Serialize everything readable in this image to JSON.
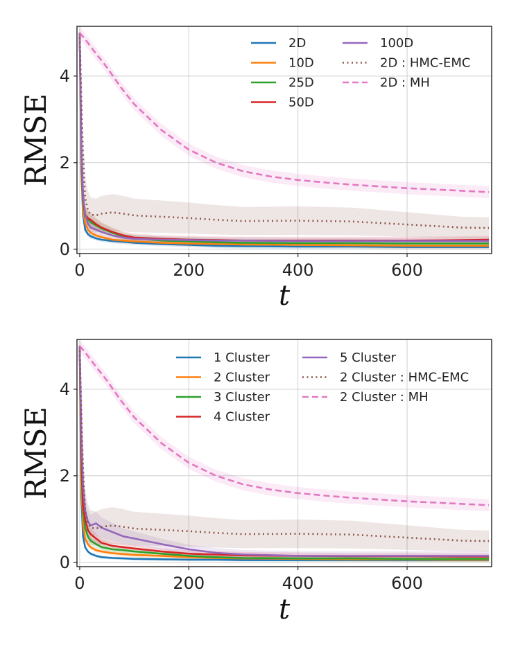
{
  "colors": {
    "c2D": "#1f77b4",
    "c10D": "#ff7f0e",
    "c25D": "#2ca02c",
    "c50D": "#d62728",
    "c100D": "#9467bd",
    "hmc": "#8c564b",
    "mh": "#e377c2",
    "grid": "#cfcfcf",
    "axes": "#222222"
  },
  "chart_data": [
    {
      "type": "line",
      "title": "",
      "xlabel": "t",
      "ylabel": "RMSE",
      "xlim": [
        -5,
        755
      ],
      "ylim": [
        -0.1,
        5.15
      ],
      "xticks": [
        0,
        200,
        400,
        600
      ],
      "xtick_labels": [
        "0",
        "200",
        "400",
        "600"
      ],
      "yticks": [
        0,
        2,
        4
      ],
      "ytick_labels": [
        "0",
        "2",
        "4"
      ],
      "grid": true,
      "legend": "top-right",
      "series": [
        {
          "name": "2D",
          "style": "solid",
          "color": "#1f77b4",
          "band": 0.15,
          "x": [
            0,
            3,
            6,
            10,
            15,
            20,
            30,
            40,
            60,
            80,
            100,
            150,
            200,
            250,
            300,
            400,
            500,
            600,
            700,
            750
          ],
          "y": [
            5.0,
            1.8,
            0.8,
            0.45,
            0.35,
            0.3,
            0.25,
            0.22,
            0.19,
            0.17,
            0.15,
            0.12,
            0.1,
            0.08,
            0.07,
            0.06,
            0.06,
            0.05,
            0.05,
            0.05
          ]
        },
        {
          "name": "10D",
          "style": "solid",
          "color": "#ff7f0e",
          "band": 0.18,
          "x": [
            0,
            3,
            6,
            10,
            15,
            20,
            30,
            40,
            60,
            80,
            100,
            150,
            200,
            250,
            300,
            400,
            500,
            600,
            700,
            750
          ],
          "y": [
            5.0,
            2.0,
            0.9,
            0.6,
            0.45,
            0.38,
            0.32,
            0.28,
            0.22,
            0.2,
            0.18,
            0.15,
            0.13,
            0.12,
            0.11,
            0.1,
            0.09,
            0.08,
            0.08,
            0.08
          ]
        },
        {
          "name": "25D",
          "style": "solid",
          "color": "#2ca02c",
          "band": 0.25,
          "x": [
            0,
            3,
            6,
            10,
            15,
            20,
            30,
            40,
            60,
            80,
            100,
            150,
            200,
            250,
            300,
            400,
            500,
            600,
            700,
            750
          ],
          "y": [
            5.0,
            2.2,
            1.1,
            0.75,
            0.7,
            0.62,
            0.55,
            0.48,
            0.38,
            0.3,
            0.25,
            0.2,
            0.18,
            0.16,
            0.15,
            0.14,
            0.14,
            0.13,
            0.13,
            0.13
          ]
        },
        {
          "name": "50D",
          "style": "solid",
          "color": "#d62728",
          "band": 0.25,
          "x": [
            0,
            3,
            6,
            10,
            15,
            20,
            30,
            40,
            60,
            80,
            100,
            150,
            200,
            250,
            300,
            400,
            500,
            600,
            700,
            750
          ],
          "y": [
            5.0,
            2.3,
            1.2,
            0.8,
            0.72,
            0.68,
            0.58,
            0.5,
            0.4,
            0.32,
            0.27,
            0.24,
            0.22,
            0.21,
            0.2,
            0.2,
            0.2,
            0.2,
            0.21,
            0.22
          ]
        },
        {
          "name": "100D",
          "style": "solid",
          "color": "#9467bd",
          "band": 0.22,
          "x": [
            0,
            3,
            6,
            10,
            15,
            20,
            30,
            40,
            60,
            80,
            100,
            150,
            200,
            250,
            300,
            400,
            500,
            600,
            700,
            750
          ],
          "y": [
            5.0,
            2.4,
            1.3,
            0.8,
            0.6,
            0.5,
            0.45,
            0.4,
            0.32,
            0.27,
            0.24,
            0.22,
            0.21,
            0.2,
            0.2,
            0.19,
            0.19,
            0.19,
            0.19,
            0.19
          ]
        },
        {
          "name": "2D : HMC-EMC",
          "style": "dotted",
          "color": "#8c564b",
          "band": 0.5,
          "x": [
            0,
            3,
            6,
            10,
            15,
            20,
            30,
            40,
            60,
            80,
            100,
            150,
            200,
            250,
            300,
            400,
            500,
            600,
            700,
            750
          ],
          "y": [
            5.0,
            3.5,
            2.2,
            1.2,
            0.9,
            0.8,
            0.78,
            0.82,
            0.85,
            0.82,
            0.78,
            0.75,
            0.72,
            0.68,
            0.65,
            0.66,
            0.64,
            0.57,
            0.5,
            0.49
          ]
        },
        {
          "name": "2D : MH",
          "style": "dashed",
          "color": "#e377c2",
          "band": 0.14,
          "x": [
            0,
            10,
            25,
            50,
            75,
            100,
            150,
            200,
            250,
            300,
            350,
            400,
            450,
            500,
            550,
            600,
            650,
            700,
            750
          ],
          "y": [
            5.0,
            4.85,
            4.6,
            4.2,
            3.75,
            3.35,
            2.75,
            2.3,
            2.0,
            1.8,
            1.68,
            1.6,
            1.54,
            1.49,
            1.45,
            1.41,
            1.38,
            1.35,
            1.32
          ]
        }
      ]
    },
    {
      "type": "line",
      "title": "",
      "xlabel": "t",
      "ylabel": "RMSE",
      "xlim": [
        -5,
        755
      ],
      "ylim": [
        -0.1,
        5.15
      ],
      "xticks": [
        0,
        200,
        400,
        600
      ],
      "xtick_labels": [
        "0",
        "200",
        "400",
        "600"
      ],
      "yticks": [
        0,
        2,
        4
      ],
      "ytick_labels": [
        "0",
        "2",
        "4"
      ],
      "grid": true,
      "legend": "top-right",
      "series": [
        {
          "name": "1 Cluster",
          "style": "solid",
          "color": "#1f77b4",
          "band": 0.1,
          "x": [
            0,
            3,
            6,
            10,
            15,
            20,
            30,
            40,
            60,
            80,
            100,
            150,
            200,
            250,
            300,
            400,
            500,
            600,
            700,
            750
          ],
          "y": [
            5.0,
            1.5,
            0.6,
            0.35,
            0.25,
            0.2,
            0.15,
            0.12,
            0.1,
            0.09,
            0.08,
            0.07,
            0.06,
            0.06,
            0.05,
            0.05,
            0.05,
            0.05,
            0.05,
            0.05
          ]
        },
        {
          "name": "2 Cluster",
          "style": "solid",
          "color": "#ff7f0e",
          "band": 0.15,
          "x": [
            0,
            3,
            6,
            10,
            15,
            20,
            30,
            40,
            60,
            80,
            100,
            150,
            200,
            250,
            300,
            400,
            500,
            600,
            700,
            750
          ],
          "y": [
            5.0,
            1.8,
            0.9,
            0.55,
            0.42,
            0.35,
            0.28,
            0.25,
            0.21,
            0.19,
            0.17,
            0.15,
            0.12,
            0.1,
            0.09,
            0.08,
            0.07,
            0.07,
            0.06,
            0.06
          ]
        },
        {
          "name": "3 Cluster",
          "style": "solid",
          "color": "#2ca02c",
          "band": 0.2,
          "x": [
            0,
            3,
            6,
            10,
            15,
            20,
            30,
            40,
            60,
            80,
            100,
            150,
            200,
            250,
            300,
            400,
            500,
            600,
            700,
            750
          ],
          "y": [
            5.0,
            2.2,
            1.2,
            0.8,
            0.6,
            0.5,
            0.42,
            0.35,
            0.3,
            0.28,
            0.25,
            0.2,
            0.15,
            0.12,
            0.1,
            0.09,
            0.09,
            0.08,
            0.08,
            0.08
          ]
        },
        {
          "name": "4 Cluster",
          "style": "solid",
          "color": "#d62728",
          "band": 0.22,
          "x": [
            0,
            3,
            6,
            10,
            15,
            20,
            30,
            40,
            60,
            80,
            100,
            150,
            200,
            250,
            300,
            400,
            500,
            600,
            700,
            750
          ],
          "y": [
            5.0,
            2.5,
            1.3,
            1.0,
            0.75,
            0.65,
            0.55,
            0.45,
            0.38,
            0.35,
            0.32,
            0.25,
            0.2,
            0.18,
            0.16,
            0.15,
            0.14,
            0.14,
            0.13,
            0.13
          ]
        },
        {
          "name": "5 Cluster",
          "style": "solid",
          "color": "#9467bd",
          "band": 0.3,
          "x": [
            0,
            3,
            6,
            10,
            15,
            20,
            30,
            40,
            60,
            80,
            100,
            150,
            200,
            250,
            300,
            400,
            500,
            600,
            700,
            750
          ],
          "y": [
            5.0,
            3.0,
            1.8,
            1.2,
            0.95,
            0.85,
            0.9,
            0.8,
            0.7,
            0.6,
            0.55,
            0.42,
            0.3,
            0.22,
            0.18,
            0.15,
            0.15,
            0.15,
            0.15,
            0.15
          ]
        },
        {
          "name": "2 Cluster : HMC-EMC",
          "style": "dotted",
          "color": "#8c564b",
          "band": 0.5,
          "x": [
            0,
            3,
            6,
            10,
            15,
            20,
            30,
            40,
            60,
            80,
            100,
            150,
            200,
            250,
            300,
            400,
            500,
            600,
            700,
            750
          ],
          "y": [
            5.0,
            3.5,
            2.2,
            1.2,
            0.9,
            0.8,
            0.78,
            0.82,
            0.85,
            0.82,
            0.78,
            0.75,
            0.72,
            0.68,
            0.65,
            0.66,
            0.64,
            0.57,
            0.5,
            0.49
          ]
        },
        {
          "name": "2 Cluster : MH",
          "style": "dashed",
          "color": "#e377c2",
          "band": 0.14,
          "x": [
            0,
            10,
            25,
            50,
            75,
            100,
            150,
            200,
            250,
            300,
            350,
            400,
            450,
            500,
            550,
            600,
            650,
            700,
            750
          ],
          "y": [
            5.0,
            4.85,
            4.6,
            4.2,
            3.75,
            3.35,
            2.75,
            2.3,
            2.0,
            1.8,
            1.68,
            1.6,
            1.54,
            1.49,
            1.45,
            1.41,
            1.38,
            1.35,
            1.32
          ]
        }
      ]
    }
  ]
}
